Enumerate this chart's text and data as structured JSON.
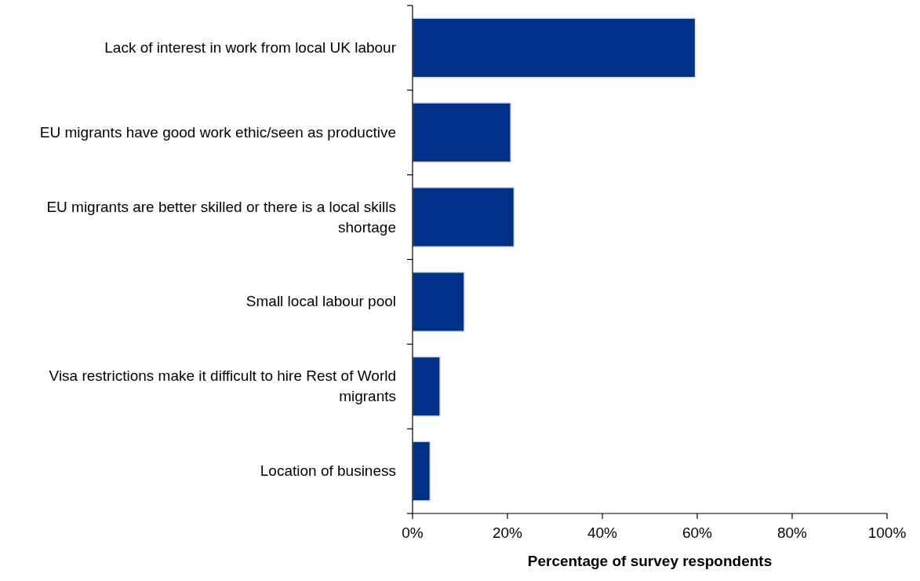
{
  "chart_data": {
    "type": "bar",
    "orientation": "horizontal",
    "xlabel": "Percentage of survey respondents",
    "categories": [
      "Lack of interest in work from local UK labour",
      "EU migrants have good work ethic/seen as productive",
      "EU migrants are better skilled or there is a local skills shortage",
      "Small local labour pool",
      "Visa restrictions make it difficult to hire Rest of World migrants",
      "Location of business"
    ],
    "values": [
      59.6,
      20.7,
      21.4,
      10.9,
      5.8,
      3.7
    ],
    "color": "#003189",
    "xlim": [
      0,
      100
    ],
    "xticks": [
      {
        "value": 0,
        "label": "0%"
      },
      {
        "value": 20,
        "label": "20%"
      },
      {
        "value": 40,
        "label": "40%"
      },
      {
        "value": 60,
        "label": "60%"
      },
      {
        "value": 80,
        "label": "80%"
      },
      {
        "value": 100,
        "label": "100%"
      }
    ],
    "grid": false
  }
}
